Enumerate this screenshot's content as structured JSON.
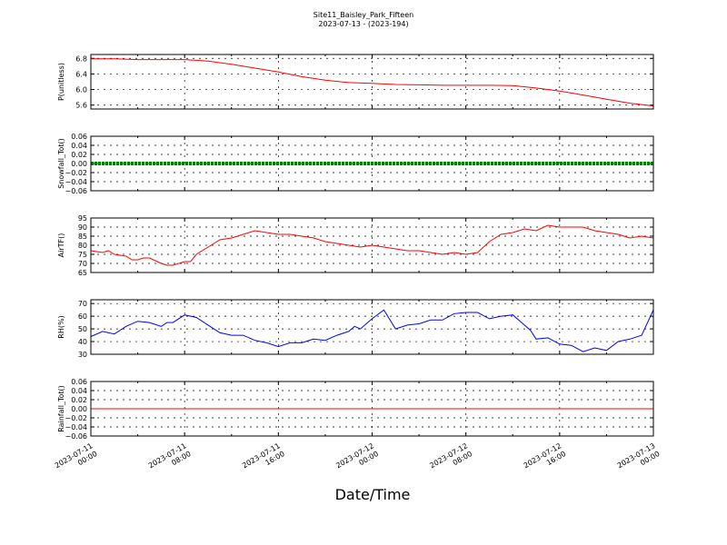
{
  "title_line1": "Site11_Baisley_Park_Fifteen",
  "title_line2": "2023-07-13 - (2023-194)",
  "xlabel": "Date/Time",
  "x_ticks": [
    {
      "l1": "2023-07-11",
      "l2": "00:00"
    },
    {
      "l1": "2023-07-11",
      "l2": "08:00"
    },
    {
      "l1": "2023-07-11",
      "l2": "16:00"
    },
    {
      "l1": "2023-07-12",
      "l2": "00:00"
    },
    {
      "l1": "2023-07-12",
      "l2": "08:00"
    },
    {
      "l1": "2023-07-12",
      "l2": "16:00"
    },
    {
      "l1": "2023-07-13",
      "l2": "00:00"
    }
  ],
  "chart_data": [
    {
      "type": "line",
      "ylabel": "P(unitless)",
      "ylim": [
        5.5,
        6.9
      ],
      "yticks": [
        5.6,
        6.0,
        6.4,
        6.8
      ],
      "ytick_labels": [
        "5.6",
        "6.0",
        "6.4",
        "6.8"
      ],
      "color": "#ff0000",
      "grid": true,
      "x_hours": [
        0,
        2,
        4,
        6,
        8,
        9,
        10,
        12,
        14,
        16,
        18,
        20,
        22,
        24,
        26,
        28,
        30,
        32,
        34,
        36,
        38,
        40,
        42,
        44,
        46,
        48
      ],
      "y": [
        6.79,
        6.79,
        6.77,
        6.77,
        6.77,
        6.75,
        6.73,
        6.65,
        6.55,
        6.45,
        6.33,
        6.24,
        6.18,
        6.16,
        6.13,
        6.12,
        6.11,
        6.11,
        6.11,
        6.1,
        6.04,
        5.96,
        5.86,
        5.75,
        5.65,
        5.58
      ]
    },
    {
      "type": "line",
      "ylabel": "Snowfall_Tot()",
      "ylim": [
        -0.06,
        0.06
      ],
      "yticks": [
        -0.06,
        -0.04,
        -0.02,
        0.0,
        0.02,
        0.04,
        0.06
      ],
      "ytick_labels": [
        "−0.06",
        "−0.04",
        "−0.02",
        "0.00",
        "0.02",
        "0.04",
        "0.06"
      ],
      "color": "#008000",
      "grid": true,
      "x_hours": [
        0,
        48
      ],
      "y": [
        0.0,
        0.0
      ]
    },
    {
      "type": "line",
      "ylabel": "AirTF()",
      "ylim": [
        65,
        95
      ],
      "yticks": [
        65,
        70,
        75,
        80,
        85,
        90,
        95
      ],
      "ytick_labels": [
        "65",
        "70",
        "75",
        "80",
        "85",
        "90",
        "95"
      ],
      "color": "#ff0000",
      "grid": true,
      "x_hours": [
        0,
        1,
        1.5,
        2,
        3,
        3.5,
        4,
        4.5,
        5,
        6,
        6.5,
        7,
        8,
        8.5,
        9,
        10,
        11,
        12,
        13,
        14,
        15,
        16,
        17,
        18,
        19,
        20,
        21,
        22,
        23,
        24,
        26,
        27,
        28,
        29,
        30,
        31,
        32,
        33,
        34,
        35,
        36,
        37,
        38,
        39,
        40,
        41,
        42,
        43,
        44,
        45,
        46,
        47,
        48
      ],
      "y": [
        77,
        76,
        77,
        75,
        74,
        72,
        72,
        73,
        73,
        70,
        69,
        69,
        71,
        71,
        75,
        79,
        83,
        84,
        86,
        88,
        87,
        86,
        86,
        85,
        84,
        82,
        81,
        80,
        79,
        80,
        78,
        77,
        77,
        76,
        75,
        76,
        75,
        76,
        82,
        86,
        87,
        89,
        88,
        91,
        90,
        90,
        90,
        88,
        87,
        86,
        84,
        85,
        84
      ]
    },
    {
      "type": "line",
      "ylabel": "RH(%)",
      "ylim": [
        30,
        73
      ],
      "yticks": [
        30,
        40,
        50,
        60,
        70
      ],
      "ytick_labels": [
        "30",
        "40",
        "50",
        "60",
        "70"
      ],
      "color": "#0000ff",
      "grid": true,
      "x_hours": [
        0,
        1,
        2,
        3,
        4,
        5,
        6,
        6.5,
        7,
        8,
        9,
        10,
        11,
        12,
        13,
        14,
        15,
        16,
        17,
        18,
        19,
        20,
        21,
        22,
        22.5,
        23,
        24,
        25,
        26,
        27,
        28,
        29,
        30,
        31,
        32,
        33,
        34,
        35,
        36,
        37,
        37.5,
        38,
        39,
        40,
        41,
        42,
        43,
        44,
        45,
        46,
        47,
        48
      ],
      "y": [
        44,
        48,
        46,
        52,
        56,
        55,
        52,
        55,
        55,
        61,
        59,
        53,
        47,
        45,
        45,
        41,
        39,
        36,
        39,
        39,
        42,
        41,
        45,
        48,
        52,
        50,
        58,
        65,
        50,
        53,
        54,
        57,
        57,
        62,
        63,
        63,
        58,
        60,
        61,
        53,
        49,
        42,
        43,
        38,
        37,
        32,
        35,
        33,
        40,
        42,
        45,
        65
      ]
    },
    {
      "type": "line",
      "ylabel": "Rainfall_Tot()",
      "ylim": [
        -0.06,
        0.06
      ],
      "yticks": [
        -0.06,
        -0.04,
        -0.02,
        0.0,
        0.02,
        0.04,
        0.06
      ],
      "ytick_labels": [
        "−0.06",
        "−0.04",
        "−0.02",
        "0.00",
        "0.02",
        "0.04",
        "0.06"
      ],
      "color": "#ff0000",
      "grid": true,
      "x_hours": [
        0,
        48
      ],
      "y": [
        0.0,
        0.0
      ]
    }
  ]
}
